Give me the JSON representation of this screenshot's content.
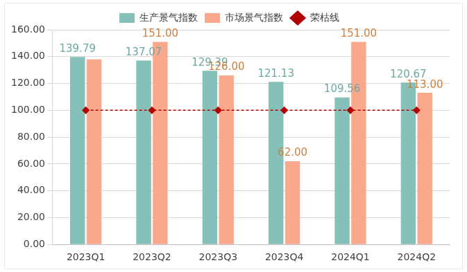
{
  "chart_data": {
    "type": "bar",
    "categories": [
      "2023Q1",
      "2023Q2",
      "2023Q3",
      "2023Q4",
      "2024Q1",
      "2024Q2"
    ],
    "series": [
      {
        "name": "生产景气指数",
        "color": "#86c1b9",
        "values": [
          139.79,
          137.07,
          129.39,
          121.13,
          109.56,
          120.67
        ],
        "data_labels": true
      },
      {
        "name": "市场景气指数",
        "color": "#f9a98b",
        "values": [
          138,
          151,
          126,
          62,
          151,
          113
        ],
        "value_labels": [
          null,
          "151.00",
          "126.00",
          "62.00",
          "151.00",
          "113.00"
        ],
        "data_labels": true
      },
      {
        "name": "荣枯线",
        "type": "line",
        "color": "#b00000",
        "line_style": "dashed",
        "marker": "diamond",
        "values": [
          100,
          100,
          100,
          100,
          100,
          100
        ],
        "data_labels": false
      }
    ],
    "ylim": [
      0,
      160
    ],
    "yticks": [
      {
        "value": 0,
        "label": "0.00"
      },
      {
        "value": 20,
        "label": "20.00"
      },
      {
        "value": 40,
        "label": "40.00"
      },
      {
        "value": 60,
        "label": "60.00"
      },
      {
        "value": 80,
        "label": "80.00"
      },
      {
        "value": 100,
        "label": "100.00"
      },
      {
        "value": 120,
        "label": "120.00"
      },
      {
        "value": 140,
        "label": "140.00"
      },
      {
        "value": 160,
        "label": "160.00"
      }
    ],
    "grid": true,
    "legend": "top"
  }
}
